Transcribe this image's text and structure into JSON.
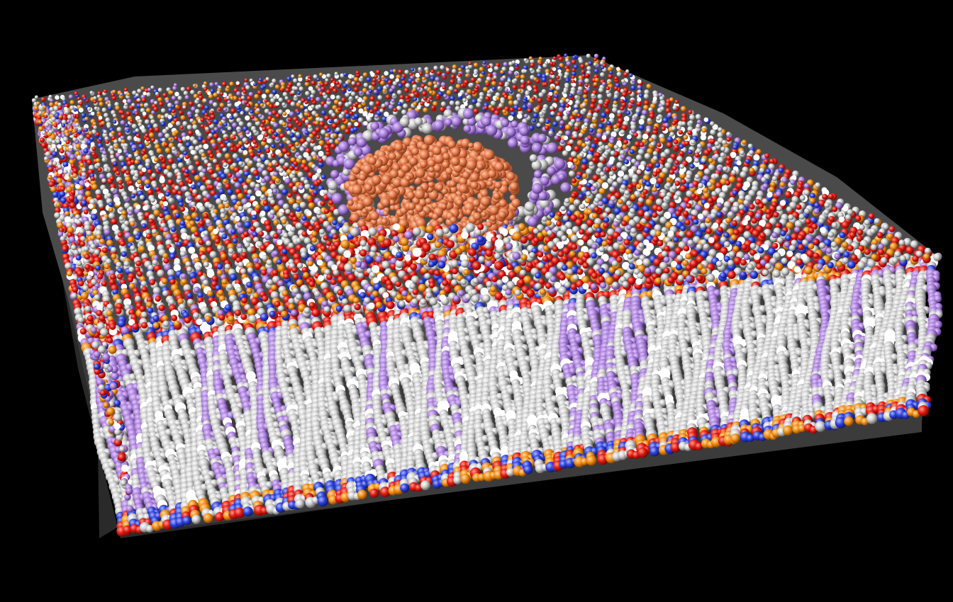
{
  "scene": {
    "background_color": "#000000",
    "subject": "lipid-bilayer-membrane-with-embedded-protein",
    "palette": {
      "carbon": "#c9c9c9",
      "carbon_shadow": "#6e6e6e",
      "oxygen": "#e01a12",
      "phosphorus": "#f08a10",
      "nitrogen": "#2c3fd8",
      "hydrogen": "#f4f4f4",
      "lipid_tail_purple": "#a77ed8",
      "lipid_tail_purple_shadow": "#5b3a87",
      "protein": "#e57a4c",
      "protein_shadow": "#9b4a28"
    }
  }
}
